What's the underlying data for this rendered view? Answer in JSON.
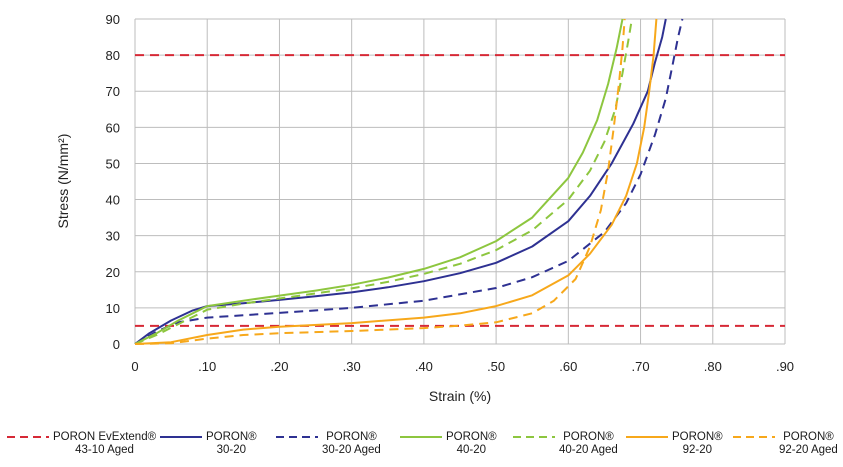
{
  "chart_data": {
    "type": "line",
    "xlabel": "Strain (%)",
    "ylabel": "Stress (N/mm²)",
    "xlim": [
      0,
      0.9
    ],
    "ylim": [
      0,
      90
    ],
    "x_ticks": [
      "0",
      ".10",
      ".20",
      ".30",
      ".40",
      ".50",
      ".60",
      ".70",
      ".80",
      ".90"
    ],
    "x_tick_values": [
      0,
      0.1,
      0.2,
      0.3,
      0.4,
      0.5,
      0.6,
      0.7,
      0.8,
      0.9
    ],
    "y_ticks": [
      "0",
      "10",
      "20",
      "30",
      "40",
      "50",
      "60",
      "70",
      "80",
      "90"
    ],
    "y_tick_values": [
      0,
      10,
      20,
      30,
      40,
      50,
      60,
      70,
      80,
      90
    ],
    "grid": true,
    "legend_position": "bottom",
    "series": [
      {
        "name": "PORON EvExtend® 43-10 Aged",
        "label_lines": [
          "PORON EvExtend®",
          "43-10 Aged"
        ],
        "color": "#d62936",
        "dash": true,
        "points": [
          [
            0,
            80
          ],
          [
            0.9,
            80
          ]
        ],
        "extra_lines": [
          [
            [
              0,
              5
            ],
            [
              0.9,
              5
            ]
          ]
        ]
      },
      {
        "name": "PORON® 30-20",
        "label_lines": [
          "PORON®",
          "30-20"
        ],
        "color": "#2e3192",
        "dash": false,
        "points": [
          [
            0,
            0
          ],
          [
            0.02,
            3
          ],
          [
            0.05,
            6.5
          ],
          [
            0.08,
            9.3
          ],
          [
            0.1,
            10.5
          ],
          [
            0.15,
            11.3
          ],
          [
            0.2,
            12.2
          ],
          [
            0.25,
            13.2
          ],
          [
            0.3,
            14.3
          ],
          [
            0.35,
            15.7
          ],
          [
            0.4,
            17.4
          ],
          [
            0.45,
            19.6
          ],
          [
            0.5,
            22.5
          ],
          [
            0.55,
            27
          ],
          [
            0.6,
            34
          ],
          [
            0.63,
            41
          ],
          [
            0.66,
            50
          ],
          [
            0.69,
            61
          ],
          [
            0.71,
            70
          ],
          [
            0.72,
            78
          ],
          [
            0.73,
            85
          ],
          [
            0.735,
            90
          ]
        ]
      },
      {
        "name": "PORON® 30-20 Aged",
        "label_lines": [
          "PORON®",
          "30-20 Aged"
        ],
        "color": "#2e3192",
        "dash": true,
        "points": [
          [
            0,
            0
          ],
          [
            0.03,
            3.5
          ],
          [
            0.06,
            6
          ],
          [
            0.1,
            7.3
          ],
          [
            0.2,
            8.6
          ],
          [
            0.3,
            10
          ],
          [
            0.4,
            12
          ],
          [
            0.5,
            15.5
          ],
          [
            0.55,
            18.5
          ],
          [
            0.6,
            23
          ],
          [
            0.65,
            31
          ],
          [
            0.68,
            39
          ],
          [
            0.7,
            47
          ],
          [
            0.72,
            58
          ],
          [
            0.735,
            68
          ],
          [
            0.745,
            78
          ],
          [
            0.752,
            85
          ],
          [
            0.758,
            90
          ]
        ]
      },
      {
        "name": "PORON® 40-20",
        "label_lines": [
          "PORON®",
          "40-20"
        ],
        "color": "#8dc63f",
        "dash": false,
        "points": [
          [
            0,
            0
          ],
          [
            0.03,
            3
          ],
          [
            0.06,
            6.5
          ],
          [
            0.09,
            9.5
          ],
          [
            0.1,
            10.5
          ],
          [
            0.15,
            12
          ],
          [
            0.2,
            13.4
          ],
          [
            0.25,
            14.8
          ],
          [
            0.3,
            16.4
          ],
          [
            0.35,
            18.4
          ],
          [
            0.4,
            20.8
          ],
          [
            0.45,
            24
          ],
          [
            0.5,
            28.5
          ],
          [
            0.55,
            35
          ],
          [
            0.6,
            46
          ],
          [
            0.62,
            53
          ],
          [
            0.64,
            62
          ],
          [
            0.655,
            72
          ],
          [
            0.667,
            82
          ],
          [
            0.675,
            90
          ]
        ]
      },
      {
        "name": "PORON® 40-20 Aged",
        "label_lines": [
          "PORON®",
          "40-20 Aged"
        ],
        "color": "#8dc63f",
        "dash": true,
        "points": [
          [
            0,
            0
          ],
          [
            0.03,
            2.5
          ],
          [
            0.06,
            5.5
          ],
          [
            0.09,
            8.5
          ],
          [
            0.1,
            9.5
          ],
          [
            0.15,
            11.2
          ],
          [
            0.2,
            12.6
          ],
          [
            0.25,
            14
          ],
          [
            0.3,
            15.4
          ],
          [
            0.35,
            17.2
          ],
          [
            0.4,
            19.4
          ],
          [
            0.45,
            22.2
          ],
          [
            0.5,
            26
          ],
          [
            0.55,
            31.5
          ],
          [
            0.6,
            40
          ],
          [
            0.63,
            48
          ],
          [
            0.65,
            56
          ],
          [
            0.665,
            65
          ],
          [
            0.675,
            75
          ],
          [
            0.683,
            84
          ],
          [
            0.688,
            90
          ]
        ]
      },
      {
        "name": "PORON® 92-20",
        "label_lines": [
          "PORON®",
          "92-20"
        ],
        "color": "#f7a81b",
        "dash": false,
        "points": [
          [
            0,
            0
          ],
          [
            0.05,
            0.5
          ],
          [
            0.1,
            2.5
          ],
          [
            0.15,
            4
          ],
          [
            0.2,
            4.8
          ],
          [
            0.3,
            5.8
          ],
          [
            0.4,
            7.3
          ],
          [
            0.45,
            8.5
          ],
          [
            0.5,
            10.5
          ],
          [
            0.55,
            13.5
          ],
          [
            0.6,
            19
          ],
          [
            0.63,
            25
          ],
          [
            0.66,
            33
          ],
          [
            0.68,
            41
          ],
          [
            0.695,
            50
          ],
          [
            0.705,
            60
          ],
          [
            0.712,
            70
          ],
          [
            0.718,
            80
          ],
          [
            0.722,
            90
          ]
        ]
      },
      {
        "name": "PORON® 92-20 Aged",
        "label_lines": [
          "PORON®",
          "92-20 Aged"
        ],
        "color": "#f7a81b",
        "dash": true,
        "points": [
          [
            0,
            0
          ],
          [
            0.05,
            0.2
          ],
          [
            0.1,
            1.5
          ],
          [
            0.15,
            2.5
          ],
          [
            0.2,
            3
          ],
          [
            0.3,
            3.6
          ],
          [
            0.4,
            4.4
          ],
          [
            0.45,
            5.1
          ],
          [
            0.5,
            6
          ],
          [
            0.55,
            8.5
          ],
          [
            0.58,
            12
          ],
          [
            0.61,
            18
          ],
          [
            0.63,
            27
          ],
          [
            0.645,
            37
          ],
          [
            0.655,
            48
          ],
          [
            0.663,
            60
          ],
          [
            0.67,
            72
          ],
          [
            0.675,
            82
          ],
          [
            0.678,
            90
          ]
        ]
      }
    ]
  }
}
